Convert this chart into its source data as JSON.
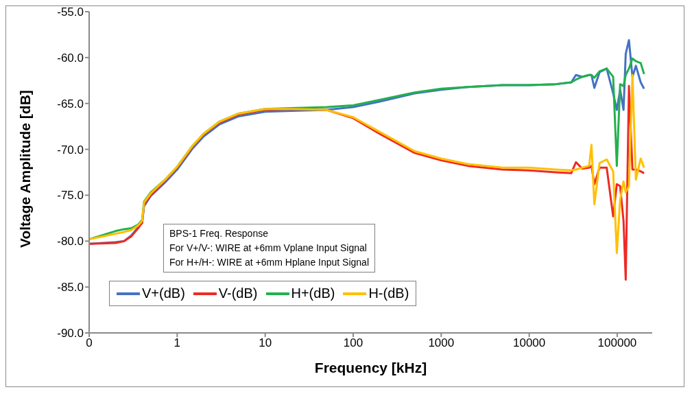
{
  "chart_data": {
    "type": "line",
    "xlabel": "Frequency [kHz]",
    "ylabel": "Voltage Amplitude [dB]",
    "annotations": [
      "BPS-1 Freq. Response",
      "For V+/V-: WIRE at +6mm Vplane Input Signal",
      "For H+/H-: WIRE at +6mm Hplane Input Signal"
    ],
    "log": "x",
    "grid": false,
    "legend": "bottom left",
    "marker": "none",
    "line_style": "solid",
    "xlim": [
      0.1,
      250000
    ],
    "xticks": [
      {
        "value": 0.1,
        "label": "0"
      },
      1,
      10,
      100,
      1000,
      10000,
      100000
    ],
    "ylim": [
      -90,
      -55
    ],
    "yticks": [
      {
        "value": -90,
        "label": "-90.0"
      },
      {
        "value": -85,
        "label": "-85.0"
      },
      {
        "value": -80,
        "label": "-80.0"
      },
      {
        "value": -75,
        "label": "-75.0"
      },
      {
        "value": -70,
        "label": "-70.0"
      },
      {
        "value": -65,
        "label": "-65.0"
      },
      {
        "value": -60,
        "label": "-60.0"
      },
      {
        "value": -55,
        "label": "-55.0"
      }
    ],
    "x": [
      0.1,
      0.2,
      0.25,
      0.3,
      0.36,
      0.4,
      0.42,
      0.5,
      0.73,
      1,
      1.5,
      2,
      3,
      5,
      10,
      20,
      50,
      100,
      200,
      500,
      1000,
      2000,
      5000,
      10000,
      20000,
      30000,
      34000,
      40000,
      48000,
      51000,
      55000,
      63000,
      76000,
      90000,
      99000,
      108000,
      118000,
      125000,
      136000,
      149000,
      163000,
      185000,
      202000
    ],
    "series": [
      {
        "name": "V+(dB)",
        "color": "#4472c4",
        "values": [
          -80.3,
          -80.1,
          -80.0,
          -79.4,
          -78.5,
          -78.0,
          -76.2,
          -75.1,
          -73.6,
          -72.2,
          -69.9,
          -68.6,
          -67.3,
          -66.4,
          -65.9,
          -65.8,
          -65.7,
          -65.4,
          -64.8,
          -63.9,
          -63.5,
          -63.2,
          -63.0,
          -63.0,
          -62.9,
          -62.7,
          -61.9,
          -62.1,
          -61.9,
          -61.9,
          -63.3,
          -61.6,
          -61.2,
          -63.9,
          -65.7,
          -63.5,
          -65.7,
          -59.6,
          -58.1,
          -62.1,
          -60.9,
          -62.7,
          -63.4
        ]
      },
      {
        "name": "V-(dB)",
        "color": "#ee2a24",
        "values": [
          -80.3,
          -80.2,
          -80.0,
          -79.5,
          -78.6,
          -78.0,
          -76.0,
          -75.0,
          -73.4,
          -72.0,
          -69.7,
          -68.4,
          -67.1,
          -66.2,
          -65.7,
          -65.6,
          -65.7,
          -66.6,
          -68.3,
          -70.4,
          -71.2,
          -71.8,
          -72.2,
          -72.3,
          -72.5,
          -72.6,
          -71.4,
          -72.1,
          -72.0,
          -71.8,
          -73.8,
          -72.0,
          -72.0,
          -77.3,
          -73.8,
          -74.0,
          -77.8,
          -84.2,
          -63.1,
          -72.2,
          -72.2,
          -72.4,
          -72.6
        ]
      },
      {
        "name": "H+(dB)",
        "color": "#22b14c",
        "values": [
          -79.8,
          -78.9,
          -78.7,
          -78.6,
          -78.2,
          -77.7,
          -75.7,
          -74.7,
          -73.3,
          -71.9,
          -69.6,
          -68.3,
          -67.0,
          -66.1,
          -65.6,
          -65.5,
          -65.4,
          -65.2,
          -64.6,
          -63.8,
          -63.4,
          -63.2,
          -63.0,
          -63.0,
          -62.9,
          -62.7,
          -62.4,
          -62.1,
          -61.9,
          -61.9,
          -62.2,
          -61.5,
          -61.2,
          -62.1,
          -71.8,
          -62.9,
          -63.1,
          -61.9,
          -61.2,
          -60.1,
          -60.4,
          -60.6,
          -61.8
        ]
      },
      {
        "name": "H-(dB)",
        "color": "#ffc000",
        "values": [
          -79.8,
          -79.2,
          -79.0,
          -78.8,
          -78.3,
          -77.8,
          -75.8,
          -74.8,
          -73.3,
          -71.9,
          -69.6,
          -68.3,
          -67.0,
          -66.1,
          -65.6,
          -65.6,
          -65.7,
          -66.5,
          -68.1,
          -70.2,
          -71.0,
          -71.6,
          -72.0,
          -72.0,
          -72.2,
          -72.3,
          -72.2,
          -72.0,
          -71.8,
          -69.5,
          -76.0,
          -71.5,
          -71.1,
          -72.4,
          -81.3,
          -75.5,
          -73.5,
          -74.7,
          -74.0,
          -61.9,
          -73.3,
          -71.0,
          -72.0
        ]
      }
    ]
  }
}
